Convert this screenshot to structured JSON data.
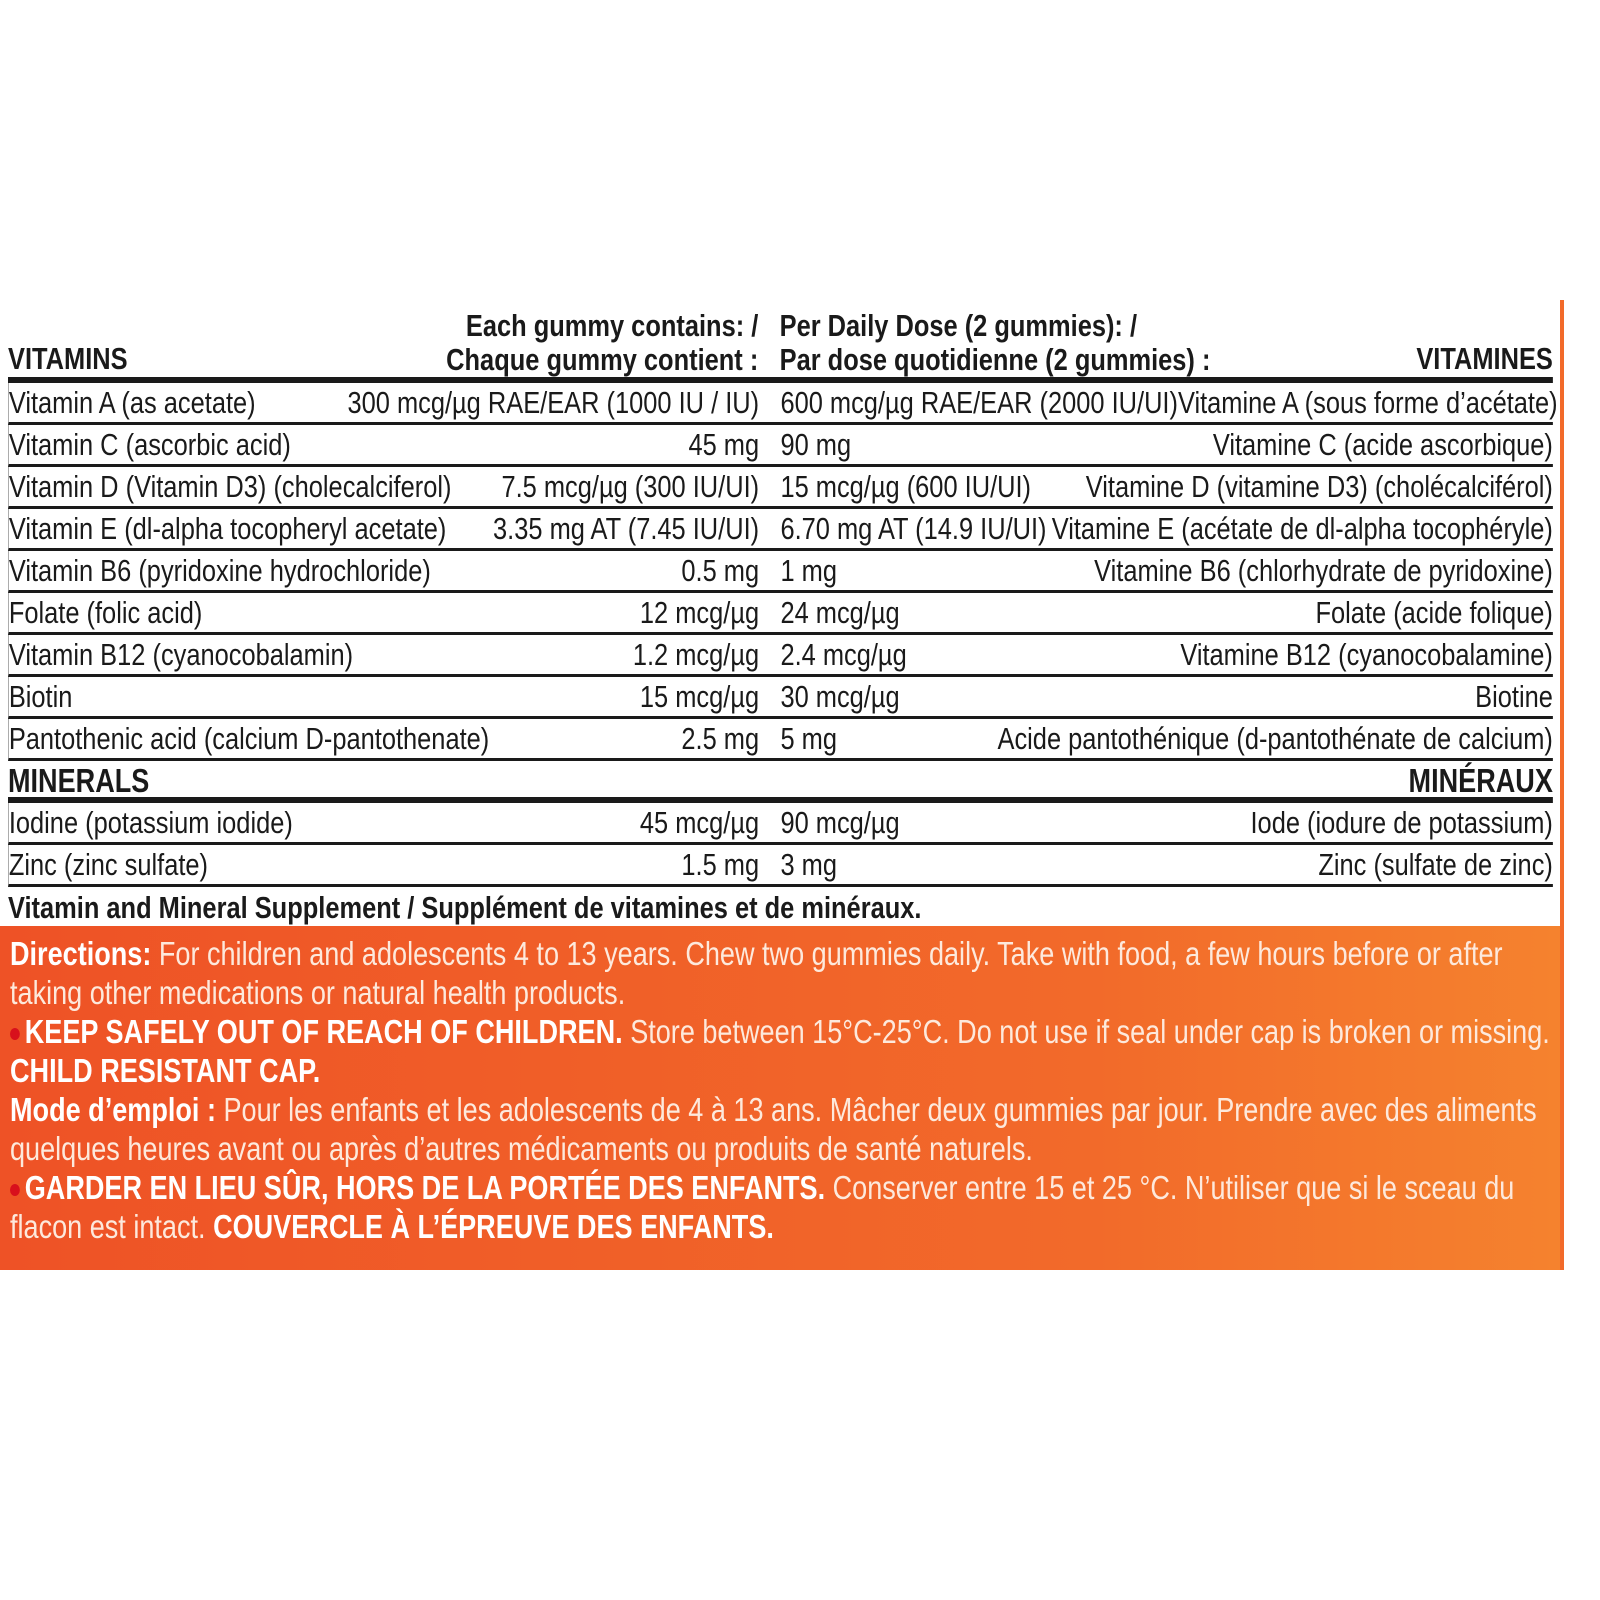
{
  "table": {
    "header": {
      "left": "VITAMINS",
      "col1": [
        "Each gummy contains: /",
        "Chaque gummy contient :"
      ],
      "col2": [
        "Per Daily Dose (2 gummies): /",
        "Par dose quotidienne (2 gummies) :"
      ],
      "right": "VITAMINES"
    },
    "vitamins": [
      [
        "Vitamin A (as acetate)",
        "300 mcg/µg RAE/EAR (1000 IU / IU)",
        "600 mcg/µg RAE/EAR (2000 IU/UI)",
        "Vitamine A (sous forme d’acétate)"
      ],
      [
        "Vitamin C (ascorbic acid)",
        "45 mg",
        "90 mg",
        "Vitamine C (acide ascorbique)"
      ],
      [
        "Vitamin D (Vitamin D3) (cholecalciferol)",
        "7.5 mcg/µg (300 IU/UI)",
        "15 mcg/µg (600 IU/UI)",
        "Vitamine D (vitamine D3) (cholécalciférol)"
      ],
      [
        "Vitamin E (dl-alpha tocopheryl acetate)",
        "3.35 mg AT (7.45 IU/UI)",
        "6.70 mg AT (14.9 IU/UI)",
        "Vitamine E (acétate de dl-alpha tocophéryle)"
      ],
      [
        "Vitamin B6 (pyridoxine hydrochloride)",
        "0.5 mg",
        "1 mg",
        "Vitamine B6 (chlorhydrate de pyridoxine)"
      ],
      [
        "Folate (folic acid)",
        "12 mcg/µg",
        "24 mcg/µg",
        "Folate (acide folique)"
      ],
      [
        "Vitamin B12 (cyanocobalamin)",
        "1.2 mcg/µg",
        "2.4 mcg/µg",
        "Vitamine B12 (cyanocobalamine)"
      ],
      [
        "Biotin",
        "15 mcg/µg",
        "30 mcg/µg",
        "Biotine"
      ],
      [
        "Pantothenic acid (calcium D-pantothenate)",
        "2.5 mg",
        "5 mg",
        "Acide pantothénique (d-pantothénate de calcium)"
      ]
    ],
    "minerals_header": {
      "left": "MINERALS",
      "right": "MINÉRAUX"
    },
    "minerals": [
      [
        "Iodine (potassium iodide)",
        "45 mcg/µg",
        "90 mcg/µg",
        "Iode (iodure de potassium)"
      ],
      [
        "Zinc (zinc sulfate)",
        "1.5 mg",
        "3 mg",
        "Zinc (sulfate de zinc)"
      ]
    ],
    "footer": "Vitamin and Mineral Supplement / Supplément de vitamines et de minéraux."
  },
  "directions_en": {
    "label": "Directions:",
    "text": "For children and adolescents 4 to 13 years. Chew two gummies daily. Take with food, a few hours before or after taking other medications or natural health products."
  },
  "warning_en": {
    "bold": "KEEP SAFELY OUT OF REACH OF CHILDREN.",
    "text": "Store between 15°C-25°C. Do not use if seal under cap is broken or missing.",
    "bold2": "CHILD RESISTANT CAP."
  },
  "directions_fr": {
    "label": "Mode d’emploi :",
    "text": "Pour les enfants et les adolescents de 4 à 13 ans. Mâcher deux gummies par jour. Prendre avec des aliments quelques heures avant ou après d’autres médicaments ou produits de santé naturels."
  },
  "warning_fr": {
    "bold": "GARDER EN LIEU SÛR, HORS DE LA PORTÉE DES ENFANTS.",
    "text": "Conserver entre 15 et 25 °C. N’utiliser que si le sceau du flacon est intact.",
    "bold2": "COUVERCLE À L’ÉPREUVE DES ENFANTS."
  }
}
